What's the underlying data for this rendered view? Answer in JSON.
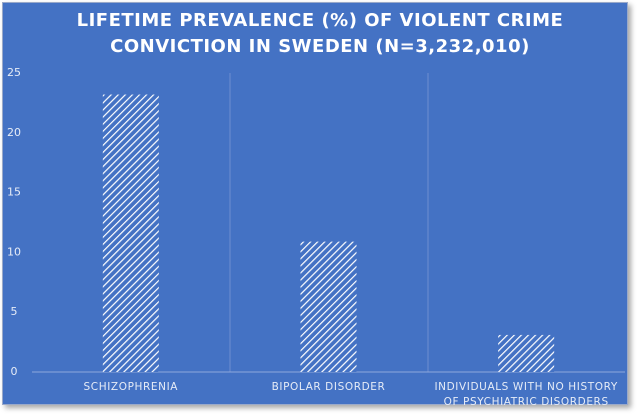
{
  "chart_data": {
    "type": "bar",
    "title": "LIFETIME PREVALENCE (%) OF VIOLENT CRIME CONVICTION IN SWEDEN (N=3,232,010)",
    "categories": [
      "SCHIZOPHRENIA",
      "BIPOLAR DISORDER",
      "INDIVIDUALS WITH NO HISTORY OF PSYCHIATRIC DISORDERS"
    ],
    "values": [
      23.2,
      10.9,
      3.1
    ],
    "color": "#ffffff",
    "ylim": [
      0,
      25
    ],
    "yticks": [
      0,
      5,
      10,
      15,
      20,
      25
    ]
  }
}
